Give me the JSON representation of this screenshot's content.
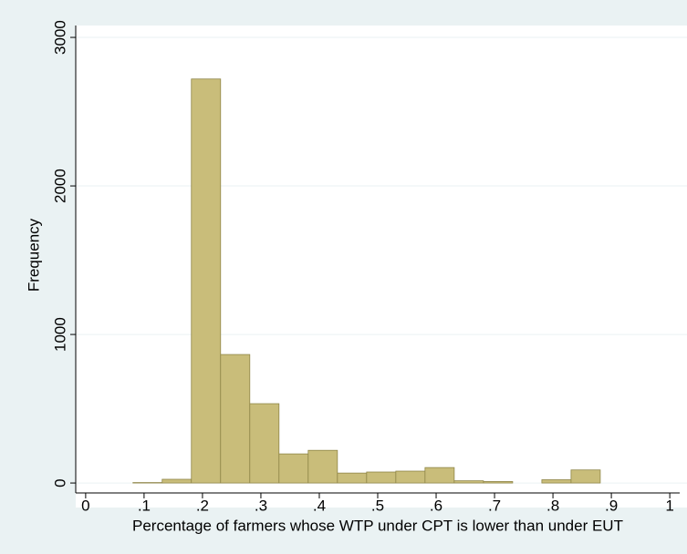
{
  "chart_data": {
    "type": "histogram",
    "xlabel": "Percentage of farmers whose WTP under CPT is lower than under EUT",
    "ylabel": "Frequency",
    "bins": [
      0.081,
      0.131,
      0.181,
      0.231,
      0.281,
      0.331,
      0.381,
      0.431,
      0.481,
      0.531,
      0.581,
      0.631,
      0.681,
      0.731,
      0.781,
      0.831,
      0.881
    ],
    "values": [
      3,
      25,
      2720,
      865,
      534,
      196,
      220,
      67,
      74,
      80,
      104,
      15,
      10,
      0,
      22,
      88
    ],
    "color": "#c9bd7a",
    "edgecolor": "#8f8648",
    "xlim": [
      -0.017,
      1.017
    ],
    "ylim": [
      -67,
      3080
    ],
    "xticks": [
      0,
      {
        "value": 0.1,
        "label": ".1"
      },
      {
        "value": 0.2,
        "label": ".2"
      },
      {
        "value": 0.3,
        "label": ".3"
      },
      {
        "value": 0.4,
        "label": ".4"
      },
      {
        "value": 0.5,
        "label": ".5"
      },
      {
        "value": 0.6,
        "label": ".6"
      },
      {
        "value": 0.7,
        "label": ".7"
      },
      {
        "value": 0.8,
        "label": ".8"
      },
      {
        "value": 0.9,
        "label": ".9"
      },
      1
    ],
    "yticks": [
      0,
      1000,
      2000,
      3000
    ],
    "grid": true
  }
}
